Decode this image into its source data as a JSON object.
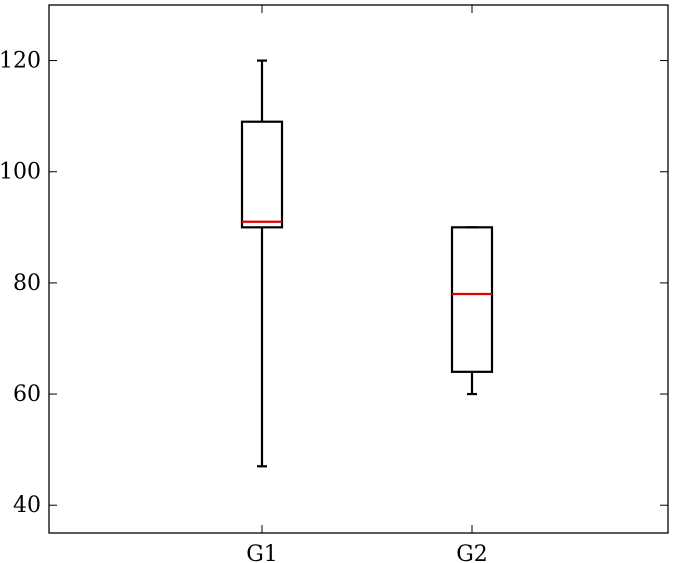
{
  "chart_data": {
    "type": "box",
    "categories": [
      "G1",
      "G2"
    ],
    "boxes": [
      {
        "category": "G1",
        "whisker_low": 47,
        "q1": 90,
        "median": 91,
        "q3": 109,
        "whisker_high": 120
      },
      {
        "category": "G2",
        "whisker_low": 60,
        "q1": 64,
        "median": 78,
        "q3": 90,
        "whisker_high": 90
      }
    ],
    "y_ticks": [
      40,
      60,
      80,
      100,
      120
    ],
    "ylim": [
      35,
      130
    ],
    "grid": false,
    "colors": {
      "box": "#000000",
      "median": "#e00000"
    }
  }
}
